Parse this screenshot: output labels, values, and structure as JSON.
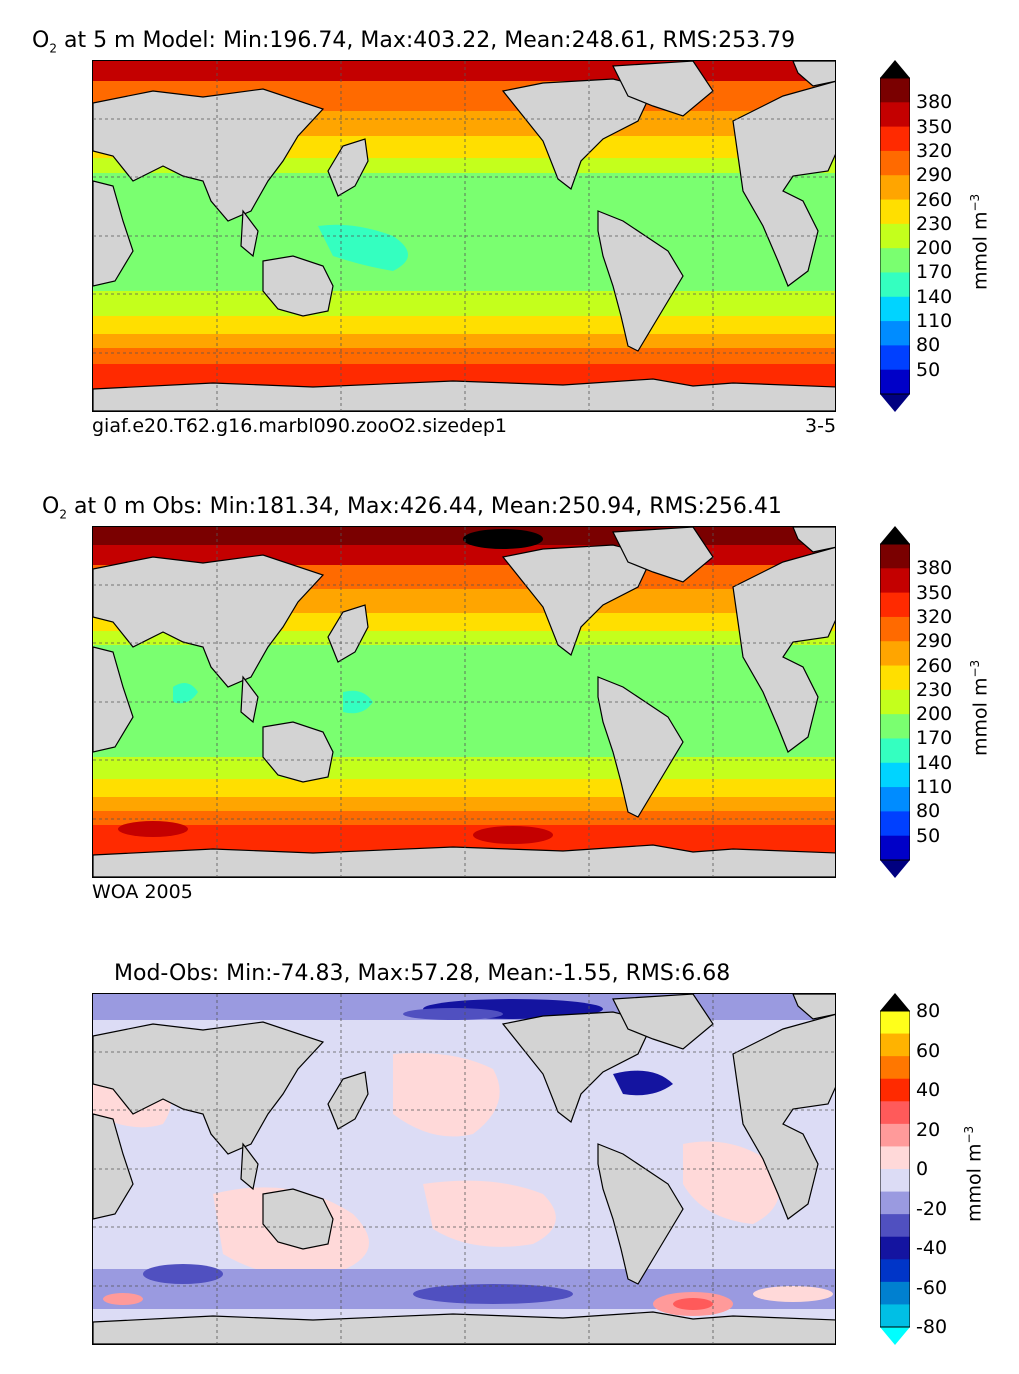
{
  "panels": [
    {
      "title_sym": "O",
      "title_sub": "2",
      "title_rest": "at 5 m Model: Min:196.74, Max:403.22, Mean:248.61, RMS:253.79",
      "caption_left": "giaf.e20.T62.g16.marbl090.zooO2.sizedep1",
      "caption_right": "3-5",
      "unit_text": "mmol m",
      "unit_sup": "−3",
      "ticks": [
        "380",
        "350",
        "320",
        "290",
        "260",
        "230",
        "200",
        "170",
        "140",
        "110",
        "80",
        "50"
      ]
    },
    {
      "title_sym": "O",
      "title_sub": "2",
      "title_rest": "at 0 m Obs: Min:181.34, Max:426.44, Mean:250.94, RMS:256.41",
      "caption_left": "WOA 2005",
      "caption_right": "",
      "unit_text": "mmol m",
      "unit_sup": "−3",
      "ticks": [
        "380",
        "350",
        "320",
        "290",
        "260",
        "230",
        "200",
        "170",
        "140",
        "110",
        "80",
        "50"
      ]
    },
    {
      "title_sym": "",
      "title_sub": "",
      "title_rest": "Mod-Obs: Min:-74.83, Max:57.28, Mean:-1.55, RMS:6.68",
      "caption_left": "",
      "caption_right": "",
      "unit_text": "mmol m",
      "unit_sup": "−3",
      "ticks": [
        "80",
        "60",
        "40",
        "20",
        "0",
        "-20",
        "-40",
        "-60",
        "-80"
      ]
    }
  ],
  "colors": {
    "land": "#d3d3d3",
    "abs_scale": [
      "#7a0000",
      "#c40000",
      "#ff2a00",
      "#ff6a00",
      "#ffa500",
      "#ffdf00",
      "#c4ff1c",
      "#7aff70",
      "#34ffc0",
      "#00d4ff",
      "#008cff",
      "#0040ff",
      "#0000c8",
      "#000080"
    ],
    "diff_scale": [
      "#ffff1a",
      "#ffb300",
      "#ff7700",
      "#ff2a00",
      "#ff5a5a",
      "#ff9a9a",
      "#ffd9d9",
      "#dcdcf5",
      "#9a9ae0",
      "#5050c0",
      "#1414a0",
      "#0035c8",
      "#0080d0",
      "#00bfe5",
      "#00ffff"
    ]
  },
  "chart_data": [
    {
      "type": "heatmap",
      "title": "O2 at 5 m Model: Min:196.74, Max:403.22, Mean:248.61, RMS:253.79",
      "variable": "O2",
      "depth": "5 m",
      "stats": {
        "min": 196.74,
        "max": 403.22,
        "mean": 248.61,
        "rms": 253.79
      },
      "colorbar": {
        "levels": [
          50,
          80,
          110,
          140,
          170,
          200,
          230,
          260,
          290,
          320,
          350,
          380
        ],
        "units": "mmol m^-3",
        "extend": "both"
      },
      "source": "giaf.e20.T62.g16.marbl090.zooO2.sizedep1",
      "period": "3-5"
    },
    {
      "type": "heatmap",
      "title": "O2 at 0 m Obs: Min:181.34, Max:426.44, Mean:250.94, RMS:256.41",
      "variable": "O2",
      "depth": "0 m",
      "stats": {
        "min": 181.34,
        "max": 426.44,
        "mean": 250.94,
        "rms": 256.41
      },
      "colorbar": {
        "levels": [
          50,
          80,
          110,
          140,
          170,
          200,
          230,
          260,
          290,
          320,
          350,
          380
        ],
        "units": "mmol m^-3",
        "extend": "both"
      },
      "source": "WOA 2005"
    },
    {
      "type": "heatmap",
      "title": "Mod-Obs: Min:-74.83, Max:57.28, Mean:-1.55, RMS:6.68",
      "stats": {
        "min": -74.83,
        "max": 57.28,
        "mean": -1.55,
        "rms": 6.68
      },
      "colorbar": {
        "levels": [
          -80,
          -60,
          -40,
          -20,
          0,
          20,
          40,
          60,
          80
        ],
        "units": "mmol m^-3",
        "extend": "both"
      }
    }
  ]
}
